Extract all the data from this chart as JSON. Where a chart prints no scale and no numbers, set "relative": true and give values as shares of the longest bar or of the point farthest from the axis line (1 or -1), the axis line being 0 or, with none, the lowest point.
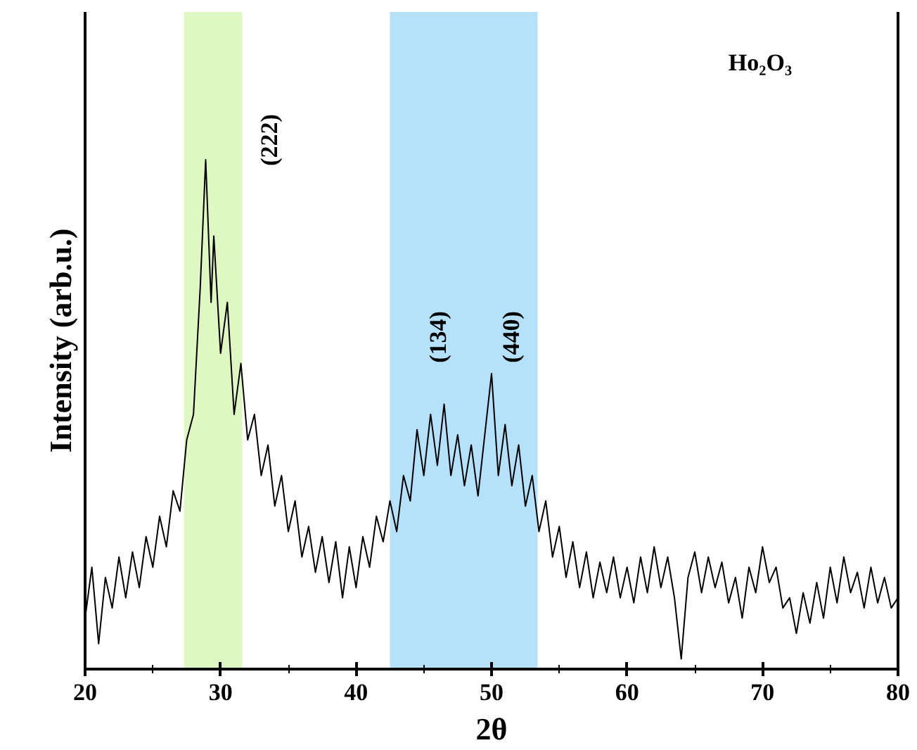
{
  "chart_data": {
    "type": "line",
    "relative": true,
    "xlabel": "2θ",
    "ylabel": "Intensity (arb.u.)",
    "xlim": [
      20,
      80
    ],
    "xticks": [
      20,
      30,
      40,
      50,
      60,
      70,
      80
    ],
    "grid": false,
    "bands": [
      {
        "axis": "x",
        "from": 27.3,
        "to": 31.6,
        "color": "#dff7c3"
      },
      {
        "axis": "x",
        "from": 42.5,
        "to": 53.4,
        "color": "#b6e1fb"
      }
    ],
    "annotations": [
      "(222)",
      "(134)",
      "(440)",
      "Ho₂O₃"
    ],
    "series": [
      {
        "color": "#000000",
        "x": [
          20,
          20.5,
          21,
          21.5,
          22,
          22.5,
          23,
          23.5,
          24,
          24.5,
          25,
          25.5,
          26,
          26.5,
          27,
          27.5,
          28,
          28.5,
          28.9,
          29.3,
          29.5,
          30,
          30.5,
          31,
          31.5,
          32,
          32.5,
          33,
          33.5,
          34,
          34.5,
          35,
          35.5,
          36,
          36.5,
          37,
          37.5,
          38,
          38.5,
          39,
          39.5,
          40,
          40.5,
          41,
          41.5,
          42,
          42.5,
          43,
          43.5,
          44,
          44.5,
          45,
          45.5,
          46,
          46.5,
          47,
          47.5,
          48,
          48.5,
          49,
          49.5,
          50,
          50.5,
          51,
          51.5,
          52,
          52.5,
          53,
          53.5,
          54,
          54.5,
          55,
          55.5,
          56,
          56.5,
          57,
          57.5,
          58,
          58.5,
          59,
          59.5,
          60,
          60.5,
          61,
          61.5,
          62,
          62.5,
          63,
          63.5,
          64,
          64.5,
          65,
          65.5,
          66,
          66.5,
          67,
          67.5,
          68,
          68.5,
          69,
          69.5,
          70,
          70.5,
          71,
          71.5,
          72,
          72.5,
          73,
          73.5,
          74,
          74.5,
          75,
          75.5,
          76,
          76.5,
          77,
          77.5,
          78,
          78.5,
          79,
          79.5,
          80
        ],
        "values": [
          0.1,
          0.2,
          0.05,
          0.18,
          0.12,
          0.22,
          0.14,
          0.23,
          0.16,
          0.26,
          0.2,
          0.3,
          0.24,
          0.35,
          0.31,
          0.45,
          0.5,
          0.75,
          1.0,
          0.72,
          0.85,
          0.62,
          0.72,
          0.5,
          0.6,
          0.45,
          0.5,
          0.38,
          0.44,
          0.32,
          0.38,
          0.27,
          0.33,
          0.22,
          0.28,
          0.19,
          0.26,
          0.17,
          0.25,
          0.14,
          0.24,
          0.16,
          0.26,
          0.2,
          0.3,
          0.25,
          0.33,
          0.27,
          0.38,
          0.33,
          0.47,
          0.38,
          0.5,
          0.4,
          0.52,
          0.38,
          0.46,
          0.36,
          0.44,
          0.34,
          0.46,
          0.58,
          0.38,
          0.48,
          0.36,
          0.44,
          0.32,
          0.38,
          0.27,
          0.33,
          0.22,
          0.28,
          0.18,
          0.25,
          0.16,
          0.23,
          0.14,
          0.21,
          0.15,
          0.22,
          0.14,
          0.2,
          0.13,
          0.22,
          0.15,
          0.24,
          0.16,
          0.22,
          0.14,
          0.02,
          0.18,
          0.23,
          0.15,
          0.22,
          0.16,
          0.21,
          0.13,
          0.18,
          0.1,
          0.2,
          0.15,
          0.24,
          0.17,
          0.2,
          0.12,
          0.14,
          0.07,
          0.15,
          0.09,
          0.17,
          0.1,
          0.2,
          0.13,
          0.22,
          0.15,
          0.19,
          0.12,
          0.2,
          0.13,
          0.18,
          0.12,
          0.14
        ]
      }
    ]
  }
}
